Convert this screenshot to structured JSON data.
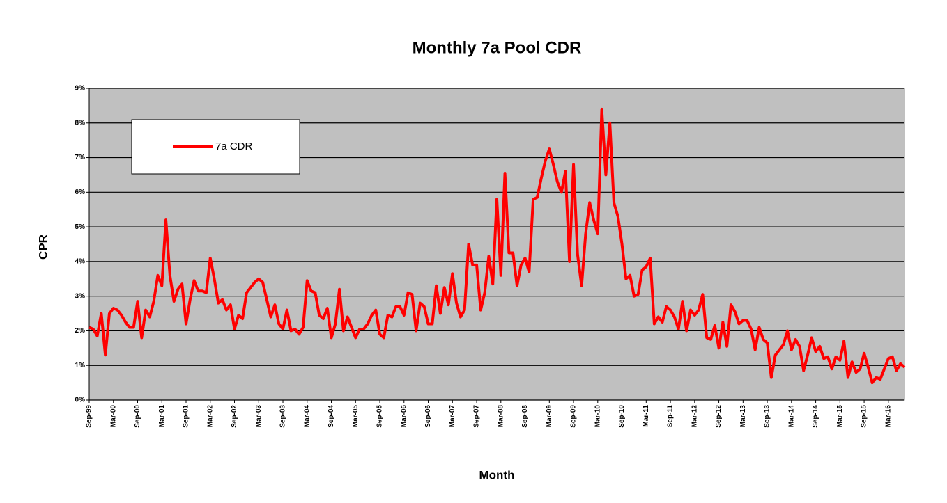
{
  "chart_data": {
    "type": "line",
    "title": "Monthly 7a Pool CDR",
    "xlabel": "Month",
    "ylabel": "CPR",
    "categories": [
      "Sep-99",
      null,
      null,
      null,
      null,
      null,
      "Mar-00",
      null,
      null,
      null,
      null,
      null,
      "Sep-00",
      null,
      null,
      null,
      null,
      null,
      "Mar-01",
      null,
      null,
      null,
      null,
      null,
      "Sep-01",
      null,
      null,
      null,
      null,
      null,
      "Mar-02",
      null,
      null,
      null,
      null,
      null,
      "Sep-02",
      null,
      null,
      null,
      null,
      null,
      "Mar-03",
      null,
      null,
      null,
      null,
      null,
      "Sep-03",
      null,
      null,
      null,
      null,
      null,
      "Mar-04",
      null,
      null,
      null,
      null,
      null,
      "Sep-04",
      null,
      null,
      null,
      null,
      null,
      "Mar-05",
      null,
      null,
      null,
      null,
      null,
      "Sep-05",
      null,
      null,
      null,
      null,
      null,
      "Mar-06",
      null,
      null,
      null,
      null,
      null,
      "Sep-06",
      null,
      null,
      null,
      null,
      null,
      "Mar-07",
      null,
      null,
      null,
      null,
      null,
      "Sep-07",
      null,
      null,
      null,
      null,
      null,
      "Mar-08",
      null,
      null,
      null,
      null,
      null,
      "Sep-08",
      null,
      null,
      null,
      null,
      null,
      "Mar-09",
      null,
      null,
      null,
      null,
      null,
      "Sep-09",
      null,
      null,
      null,
      null,
      null,
      "Mar-10",
      null,
      null,
      null,
      null,
      null,
      "Sep-10",
      null,
      null,
      null,
      null,
      null,
      "Mar-11",
      null,
      null,
      null,
      null,
      null,
      "Sep-11",
      null,
      null,
      null,
      null,
      null,
      "Mar-12",
      null,
      null,
      null,
      null,
      null,
      "Sep-12",
      null,
      null,
      null,
      null,
      null,
      "Mar-13",
      null,
      null,
      null,
      null,
      null,
      "Sep-13",
      null,
      null,
      null,
      null,
      null,
      "Mar-14",
      null,
      null,
      null,
      null,
      null,
      "Sep-14",
      null,
      null,
      null,
      null,
      null,
      "Mar-15",
      null,
      null,
      null,
      null,
      null,
      "Sep-15",
      null,
      null,
      null,
      null,
      null,
      "Mar-16",
      null,
      null,
      null,
      null
    ],
    "series": [
      {
        "name": "7a CDR",
        "color": "#ff0000",
        "values": [
          2.1,
          2.05,
          1.85,
          2.5,
          1.3,
          2.5,
          2.65,
          2.6,
          2.45,
          2.25,
          2.1,
          2.1,
          2.85,
          1.8,
          2.6,
          2.4,
          2.85,
          3.6,
          3.3,
          5.2,
          3.6,
          2.85,
          3.2,
          3.35,
          2.2,
          2.9,
          3.45,
          3.15,
          3.15,
          3.1,
          4.1,
          3.5,
          2.8,
          2.9,
          2.6,
          2.75,
          2.05,
          2.45,
          2.35,
          3.1,
          3.25,
          3.4,
          3.5,
          3.4,
          2.9,
          2.4,
          2.75,
          2.2,
          2.05,
          2.6,
          2.0,
          2.05,
          1.9,
          2.1,
          3.45,
          3.15,
          3.1,
          2.45,
          2.35,
          2.65,
          1.8,
          2.2,
          3.2,
          2.0,
          2.4,
          2.1,
          1.8,
          2.05,
          2.05,
          2.2,
          2.45,
          2.6,
          1.9,
          1.8,
          2.45,
          2.4,
          2.7,
          2.7,
          2.45,
          3.1,
          3.05,
          2.0,
          2.8,
          2.7,
          2.2,
          2.2,
          3.3,
          2.5,
          3.25,
          2.75,
          3.65,
          2.8,
          2.4,
          2.6,
          4.5,
          3.9,
          3.9,
          2.6,
          3.1,
          4.15,
          3.35,
          5.8,
          3.6,
          6.55,
          4.25,
          4.25,
          3.3,
          3.9,
          4.1,
          3.7,
          5.8,
          5.85,
          6.4,
          6.9,
          7.25,
          6.8,
          6.3,
          6.0,
          6.6,
          4.0,
          6.8,
          4.2,
          3.3,
          4.8,
          5.7,
          5.2,
          4.8,
          8.4,
          6.5,
          8.0,
          5.7,
          5.3,
          4.5,
          3.5,
          3.6,
          3.0,
          3.05,
          3.75,
          3.85,
          4.1,
          2.2,
          2.4,
          2.25,
          2.7,
          2.6,
          2.4,
          2.05,
          2.85,
          2.0,
          2.6,
          2.45,
          2.6,
          3.05,
          1.8,
          1.75,
          2.15,
          1.5,
          2.25,
          1.55,
          2.75,
          2.55,
          2.2,
          2.3,
          2.3,
          2.05,
          1.45,
          2.1,
          1.75,
          1.65,
          0.65,
          1.3,
          1.45,
          1.6,
          2.0,
          1.45,
          1.75,
          1.55,
          0.85,
          1.3,
          1.8,
          1.4,
          1.55,
          1.2,
          1.25,
          0.9,
          1.25,
          1.15,
          1.7,
          0.65,
          1.1,
          0.8,
          0.9,
          1.35,
          0.95,
          0.5,
          0.65,
          0.6,
          0.9,
          1.2,
          1.25,
          0.85,
          1.05,
          0.95
        ]
      }
    ],
    "ylim": [
      0,
      9
    ],
    "yticks": [
      {
        "value": 0,
        "label": "0%"
      },
      {
        "value": 1,
        "label": "1%"
      },
      {
        "value": 2,
        "label": "2%"
      },
      {
        "value": 3,
        "label": "3%"
      },
      {
        "value": 4,
        "label": "4%"
      },
      {
        "value": 5,
        "label": "5%"
      },
      {
        "value": 6,
        "label": "6%"
      },
      {
        "value": 7,
        "label": "7%"
      },
      {
        "value": 8,
        "label": "8%"
      },
      {
        "value": 9,
        "label": "9%"
      }
    ],
    "grid": true,
    "legend_position": "upper left"
  }
}
